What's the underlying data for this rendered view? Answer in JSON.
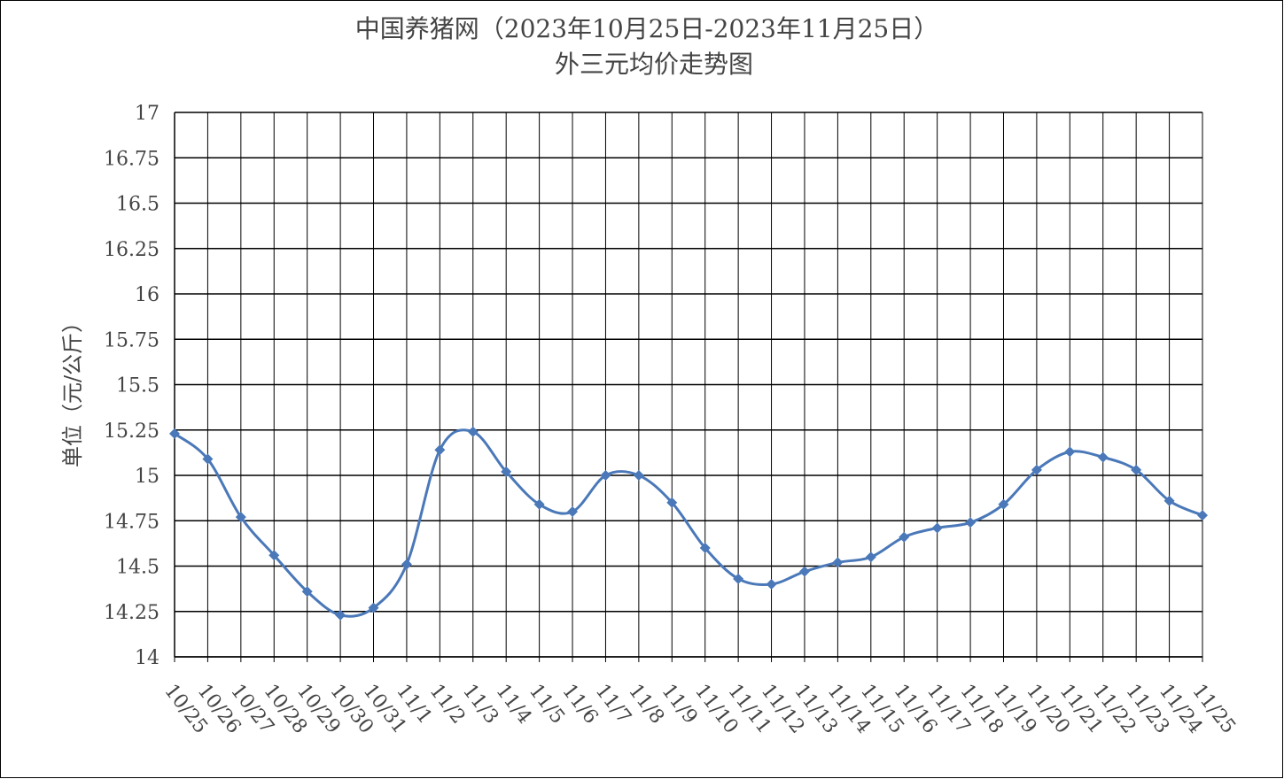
{
  "chart_data": {
    "type": "line",
    "title": "中国养猪网（2023年10月25日-2023年11月25日）",
    "subtitle": "外三元均价走势图",
    "y_label": "单位（元/公斤）",
    "categories": [
      "10/25",
      "10/26",
      "10/27",
      "10/28",
      "10/29",
      "10/30",
      "10/31",
      "11/1",
      "11/2",
      "11/3",
      "11/4",
      "11/5",
      "11/6",
      "11/7",
      "11/8",
      "11/9",
      "11/10",
      "11/11",
      "11/12",
      "11/13",
      "11/14",
      "11/15",
      "11/16",
      "11/17",
      "11/18",
      "11/19",
      "11/20",
      "11/21",
      "11/22",
      "11/23",
      "11/24",
      "11/25"
    ],
    "values": [
      15.23,
      15.09,
      14.77,
      14.56,
      14.36,
      14.23,
      14.27,
      14.51,
      15.14,
      15.24,
      15.02,
      14.84,
      14.8,
      15.0,
      15.0,
      14.85,
      14.6,
      14.43,
      14.4,
      14.47,
      14.52,
      14.55,
      14.66,
      14.71,
      14.74,
      14.84,
      15.03,
      15.13,
      15.1,
      15.03,
      14.86,
      14.78
    ],
    "color": "#4a78b8",
    "ylim": [
      14,
      17
    ],
    "yticks": [
      14,
      14.25,
      14.5,
      14.75,
      15,
      15.25,
      15.5,
      15.75,
      16,
      16.25,
      16.5,
      16.75,
      17
    ],
    "grid": true
  }
}
